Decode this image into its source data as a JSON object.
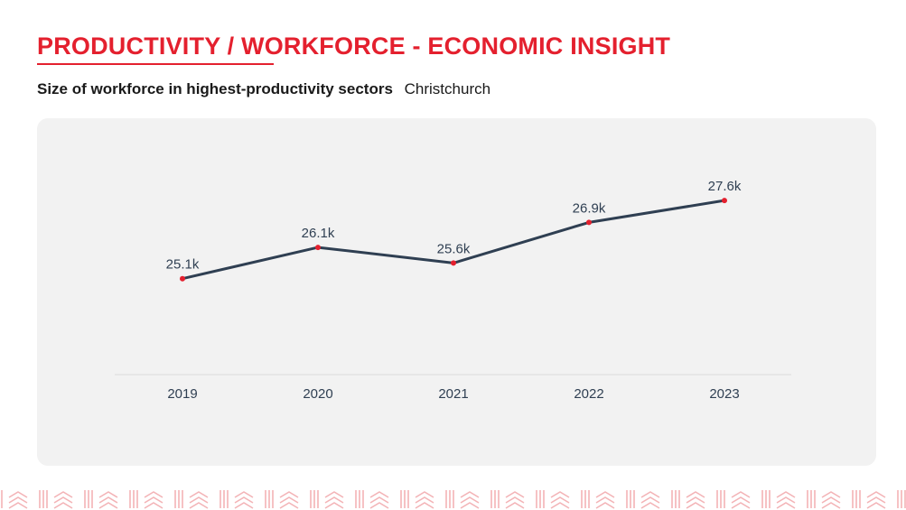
{
  "header": {
    "title": "PRODUCTIVITY / WORKFORCE - ECONOMIC INSIGHT",
    "subtitle": "Size of workforce in highest-productivity sectors",
    "region": "Christchurch"
  },
  "colors": {
    "accent": "#e4202e",
    "line": "#2f3f52",
    "marker": "#e4202e",
    "panel": "#f2f2f2",
    "pattern": "#f3b3b6"
  },
  "chart_data": {
    "type": "line",
    "categories": [
      "2019",
      "2020",
      "2021",
      "2022",
      "2023"
    ],
    "values": [
      25.1,
      26.1,
      25.6,
      26.9,
      27.6
    ],
    "data_labels": [
      "25.1k",
      "26.1k",
      "25.6k",
      "26.9k",
      "27.6k"
    ],
    "ylim": [
      22.0,
      28.5
    ],
    "grid": false,
    "legend": "none"
  }
}
